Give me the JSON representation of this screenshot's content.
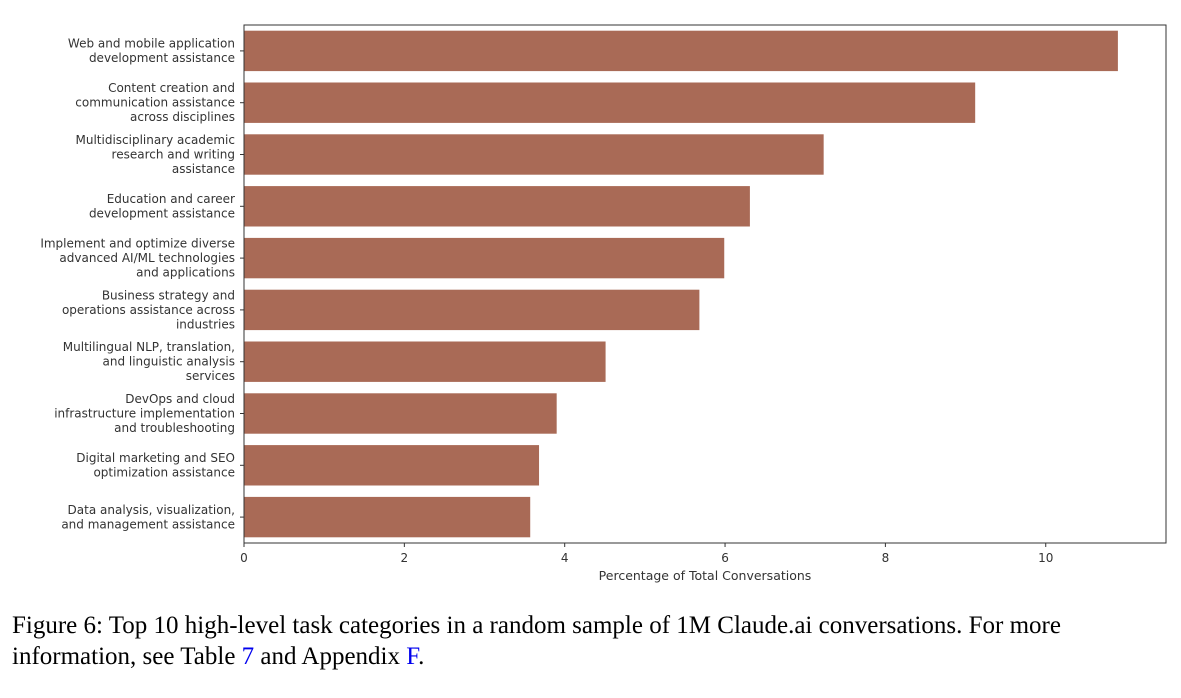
{
  "chart_data": {
    "type": "bar",
    "orientation": "horizontal",
    "categories": [
      [
        "Web and mobile application",
        "development assistance"
      ],
      [
        "Content creation and",
        "communication assistance",
        "across disciplines"
      ],
      [
        "Multidisciplinary academic",
        "research and writing",
        "assistance"
      ],
      [
        "Education and career",
        "development assistance"
      ],
      [
        "Implement and optimize diverse",
        "advanced AI/ML technologies",
        "and applications"
      ],
      [
        "Business strategy and",
        "operations assistance across",
        "industries"
      ],
      [
        "Multilingual NLP, translation,",
        "and linguistic analysis",
        "services"
      ],
      [
        "DevOps and cloud",
        "infrastructure implementation",
        "and troubleshooting"
      ],
      [
        "Digital marketing and SEO",
        "optimization assistance"
      ],
      [
        "Data analysis, visualization,",
        "and management assistance"
      ]
    ],
    "values": [
      10.9,
      9.12,
      7.23,
      6.31,
      5.99,
      5.68,
      4.51,
      3.9,
      3.68,
      3.57
    ],
    "xlabel": "Percentage of Total Conversations",
    "xlim": [
      0,
      11.5
    ],
    "xticks": [
      0,
      2,
      4,
      6,
      8,
      10
    ],
    "grid": false,
    "legend": "none",
    "bar_color": "#a96a56"
  },
  "caption": {
    "prefix": "Figure 6: Top 10 high-level task categories in a random sample of 1M Claude.ai conversations. For more information, see Table ",
    "table_ref": "7",
    "middle": " and Appendix ",
    "appendix_ref": "F",
    "suffix": "."
  }
}
